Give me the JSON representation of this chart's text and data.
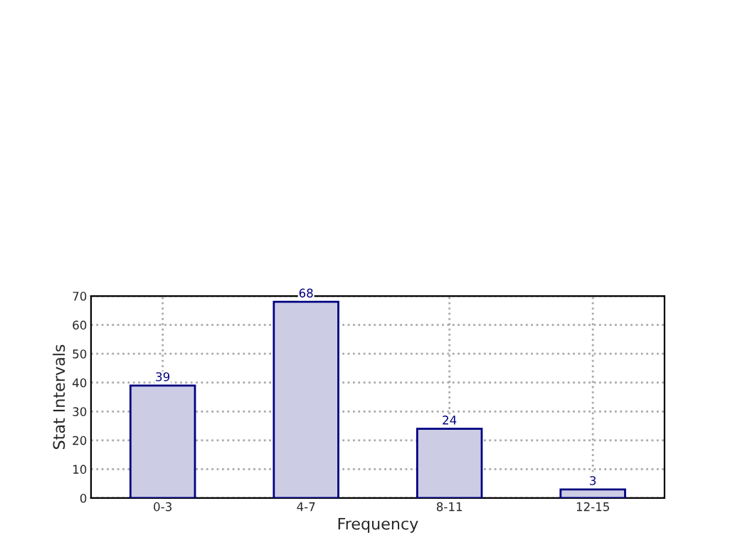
{
  "chart_data": {
    "type": "bar",
    "xlabel": "Frequency",
    "ylabel": "Stat Intervals",
    "categories": [
      "0-3",
      "4-7",
      "8-11",
      "12-15"
    ],
    "values": [
      39,
      68,
      24,
      3
    ],
    "color": "#cccce5",
    "ylim": [
      0,
      70
    ],
    "yticks": [
      0,
      10,
      20,
      30,
      40,
      50,
      60,
      70
    ],
    "grid": true,
    "data_labels": true
  }
}
